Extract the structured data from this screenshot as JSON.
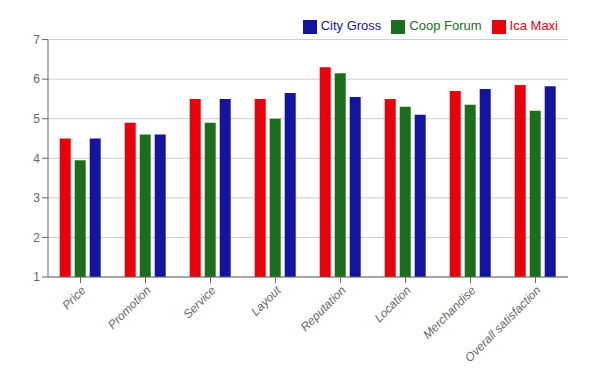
{
  "chart_data": {
    "type": "bar",
    "categories": [
      "Price",
      "Promotion",
      "Service",
      "Layout",
      "Reputation",
      "Location",
      "Merchandise",
      "Overall satisfaction"
    ],
    "series": [
      {
        "name": "Ica Maxi",
        "color": "#E8000A",
        "values": [
          4.5,
          4.9,
          5.5,
          5.5,
          6.3,
          5.5,
          5.7,
          5.85
        ]
      },
      {
        "name": "Coop Forum",
        "color": "#1C6E1C",
        "values": [
          3.95,
          4.6,
          4.9,
          5.0,
          6.15,
          5.3,
          5.35,
          5.2
        ]
      },
      {
        "name": "City Gross",
        "color": "#1414A0",
        "values": [
          4.5,
          4.6,
          5.5,
          5.65,
          5.55,
          5.1,
          5.75,
          5.82
        ]
      }
    ],
    "ylim": [
      1,
      7
    ],
    "yticks": [
      1,
      2,
      3,
      4,
      5,
      6,
      7
    ],
    "grid": true,
    "legend": "upper right"
  }
}
